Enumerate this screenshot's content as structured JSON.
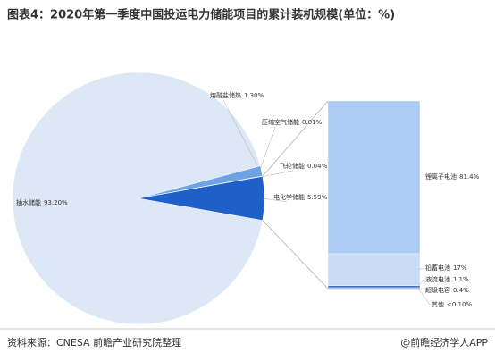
{
  "chart_data": {
    "type": "pie-of-bar",
    "title": "图表4：2020年第一季度中国投运电力储能项目的累计装机规模(单位：%)",
    "pie": {
      "categories": [
        "抽水储能",
        "熔融盐储热",
        "压缩空气储能",
        "飞轮储能",
        "电化学储能"
      ],
      "values": [
        93.2,
        1.3,
        0.01,
        0.04,
        5.59
      ],
      "value_labels": [
        "93.20%",
        "1.30%",
        "0.01%",
        "0.04%",
        "5.59%"
      ],
      "colors": [
        "#dde8f7",
        "#6ea3e3",
        "#2f6fd0",
        "#2f6fd0",
        "#1f5fc8"
      ]
    },
    "bar": {
      "categories": [
        "锂离子电池",
        "铅蓄电池",
        "液流电池",
        "超级电容",
        "其他"
      ],
      "values": [
        81.4,
        17,
        1.1,
        0.4,
        0.1
      ],
      "value_labels": [
        "81.4%",
        "17%",
        "1.1%",
        "0.4%",
        "<0.10%"
      ],
      "colors": [
        "#abcbf4",
        "#c8dcf8",
        "#3d70c3",
        "#1f5fc8",
        "#1a3f80"
      ]
    },
    "source": "资料来源：CNESA 前瞻产业研究院整理",
    "credit": "@前瞻经济学人APP"
  }
}
